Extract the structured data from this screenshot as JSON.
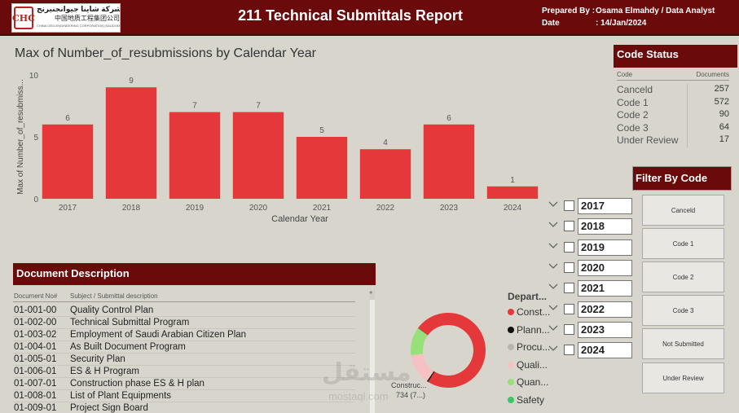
{
  "header": {
    "title": "211 Technical Submittals Report",
    "prepared_label": "Prepared By :",
    "prepared_value": "Osama Elmahdy /  Data Analyst",
    "date_label": "Date",
    "date_value": ":  14/Jan/2024",
    "logo_mark": "CHC",
    "logo_line1": "فرع شركة شاينا جيوانجنيرنج",
    "logo_line2": "中国地质工程集团公司",
    "logo_line3": "CHINA GEO-ENGINEERING CORPORATION (SAUDI BRANCH)"
  },
  "chart_data": {
    "type": "bar",
    "title": "Max of Number_of_resubmissions by Calendar Year",
    "xlabel": "Calendar Year",
    "ylabel": "Max of Number_of_resubmiss...",
    "categories": [
      "2017",
      "2018",
      "2019",
      "2020",
      "2021",
      "2022",
      "2023",
      "2024"
    ],
    "values": [
      6,
      9,
      7,
      7,
      5,
      4,
      6,
      1
    ],
    "yticks": [
      0,
      5,
      10
    ],
    "ylim": [
      0,
      10
    ],
    "color": "#e5383b"
  },
  "code_status": {
    "title": "Code Status",
    "col_code": "Code",
    "col_docs": "Documents",
    "rows": [
      {
        "code": "Canceld",
        "docs": "257"
      },
      {
        "code": "Code 1",
        "docs": "572"
      },
      {
        "code": "Code 2",
        "docs": "90"
      },
      {
        "code": "Code 3",
        "docs": "64"
      },
      {
        "code": "Under Review",
        "docs": "17"
      }
    ]
  },
  "filter": {
    "title": "Filter By Code",
    "buttons": [
      "Canceld",
      "Code 1",
      "Code 2",
      "Code 3",
      "Not Submitted",
      "Under Review"
    ]
  },
  "years": [
    "2017",
    "2018",
    "2019",
    "2020",
    "2021",
    "2022",
    "2023",
    "2024"
  ],
  "documents": {
    "title": "Document Description",
    "col_no": "Document No#",
    "col_desc": "Subject / Submittal description",
    "rows": [
      {
        "no": "01-001-00",
        "desc": "Quality Control Plan"
      },
      {
        "no": "01-002-00",
        "desc": "Technical Submittal Program"
      },
      {
        "no": "01-003-02",
        "desc": "Employment of Saudi Arabian Citizen Plan"
      },
      {
        "no": "01-004-01",
        "desc": "As Built Document Program"
      },
      {
        "no": "01-005-01",
        "desc": "Security Plan"
      },
      {
        "no": "01-006-01",
        "desc": "ES & H Program"
      },
      {
        "no": "01-007-01",
        "desc": "Construction phase ES & H plan"
      },
      {
        "no": "01-008-01",
        "desc": "List of Plant Equipments"
      },
      {
        "no": "01-009-01",
        "desc": "Project Sign Board"
      }
    ]
  },
  "department": {
    "title": "Depart...",
    "donut_label_line1": "Construc...",
    "donut_label_line2": "734 (7...)",
    "slices": [
      {
        "name": "Const...",
        "value": 734,
        "color": "#e5383b"
      },
      {
        "name": "Plann...",
        "value": 6,
        "color": "#111111"
      },
      {
        "name": "Procu...",
        "value": 2,
        "color": "#b8b6ad"
      },
      {
        "name": "Quali...",
        "value": 130,
        "color": "#f6c1c2"
      },
      {
        "name": "Quan...",
        "value": 120,
        "color": "#98e07a"
      },
      {
        "name": "Safety",
        "value": 2,
        "color": "#3cc46a"
      }
    ]
  },
  "watermark": {
    "arabic": "مستقل",
    "latin": "mostaql.com"
  }
}
